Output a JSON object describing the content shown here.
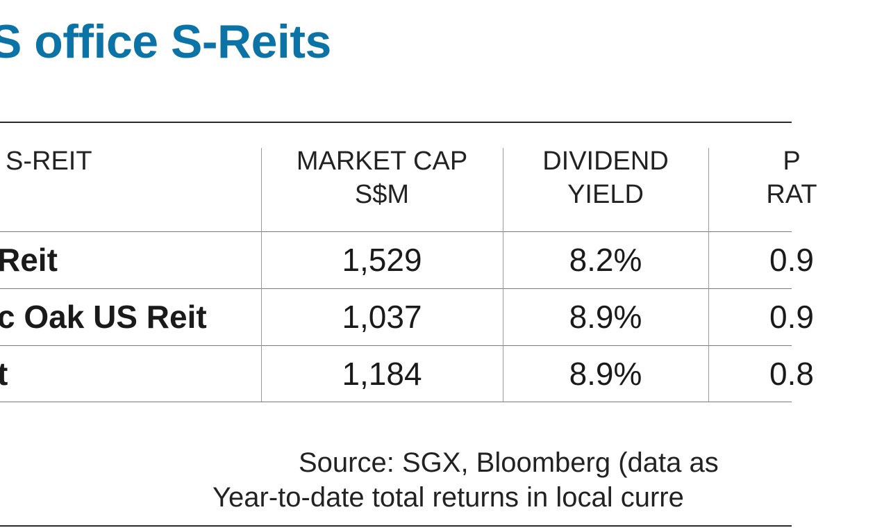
{
  "title": "S office S-Reits",
  "table": {
    "headers": [
      {
        "line1": "S-REIT",
        "line2": ""
      },
      {
        "line1": "MARKET CAP",
        "line2": "S$M"
      },
      {
        "line1": "DIVIDEND",
        "line2": "YIELD"
      },
      {
        "line1": "P",
        "line2": "RAT"
      }
    ],
    "rows": [
      {
        "name": "Reit",
        "market_cap": "1,529",
        "dividend_yield": "8.2%",
        "ratio": "0.9"
      },
      {
        "name": "c Oak US Reit",
        "market_cap": "1,037",
        "dividend_yield": "8.9%",
        "ratio": "0.9"
      },
      {
        "name": "t",
        "market_cap": "1,184",
        "dividend_yield": "8.9%",
        "ratio": "0.8"
      }
    ]
  },
  "footer": {
    "line1": "Source: SGX, Bloomberg (data as",
    "line2": "Year-to-date total returns in local curre"
  },
  "colors": {
    "title": "#0b73a6",
    "text": "#1a1a1a",
    "rule": "#2a2a2a"
  }
}
